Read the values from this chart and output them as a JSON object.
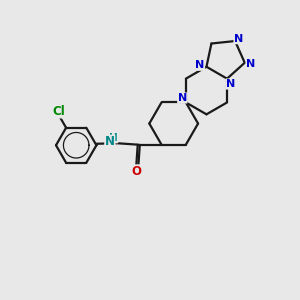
{
  "bg_color": "#e8e8e8",
  "bond_color": "#1a1a1a",
  "nitrogen_color": "#0000cc",
  "oxygen_color": "#cc0000",
  "chlorine_color": "#008800",
  "nh_color": "#008888",
  "bond_width": 1.6,
  "figsize": [
    3.0,
    3.0
  ],
  "dpi": 100,
  "xlim": [
    0,
    10
  ],
  "ylim": [
    0,
    10
  ]
}
